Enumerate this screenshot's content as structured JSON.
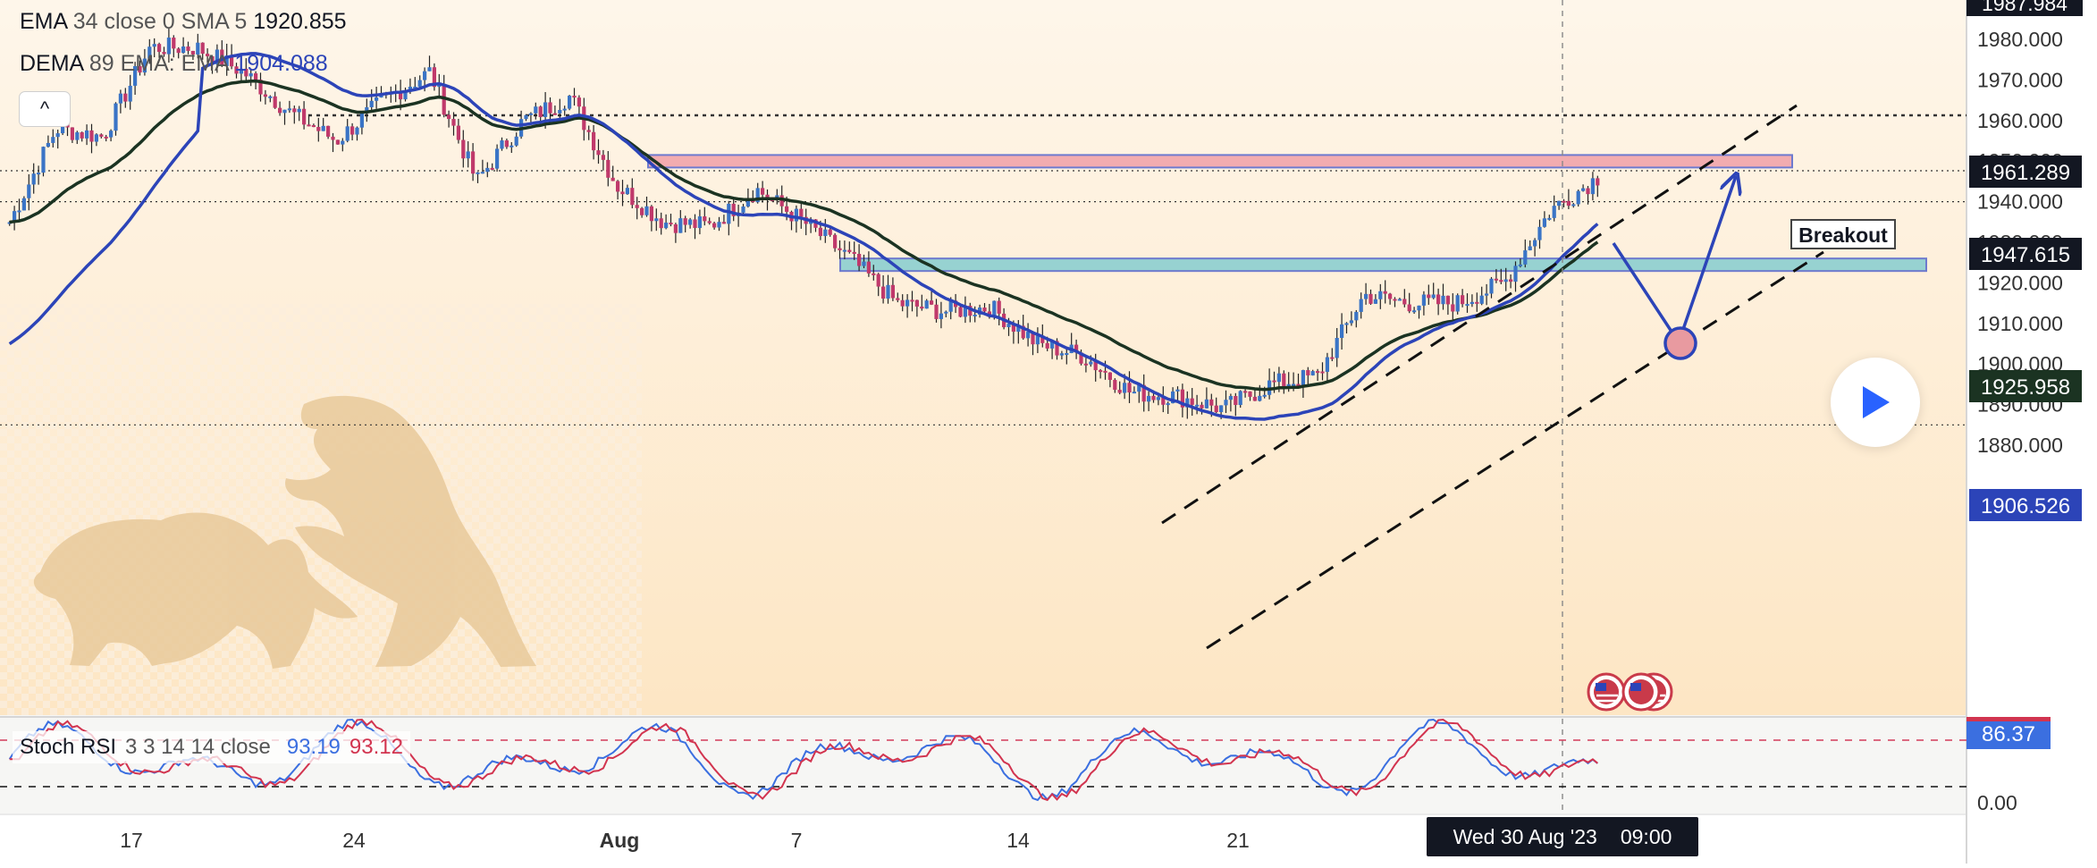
{
  "legend": {
    "ema_name": "EMA",
    "ema_params": "34 close 0 SMA 5",
    "ema_value": "1920.855",
    "dema_name": "DEMA",
    "dema_params": "89 EMA: EMA",
    "dema_value": "1904.088",
    "collapse_symbol": "^"
  },
  "annotation": {
    "breakout_label": "Breakout"
  },
  "crosshair": {
    "date": "Wed 30 Aug '23",
    "time": "09:00"
  },
  "rsi_legend": {
    "name": "Stoch RSI",
    "params": "3 3 14 14 close",
    "k_value": "93.19",
    "d_value": "93.12",
    "axis_current": "86.37",
    "axis_zero": "0.00"
  },
  "price_badges": {
    "top_clip": "1987.984",
    "level_hline": "1961.289",
    "last_price": "1947.615",
    "ema_value": "1925.958",
    "dema_value": "1906.526"
  },
  "colors": {
    "up_candle": "#3a74c6",
    "down_candle": "#c0396b",
    "ema_line": "#1b3322",
    "dema_line": "#2c44b8",
    "resistance_zone": "#f0a0a8",
    "support_zone": "#86cdd0",
    "background_warm": "#fdebd0",
    "stoch_k": "#3b6fe0",
    "stoch_d": "#d2344f"
  },
  "chart_data": {
    "type": "candlestick",
    "instrument": "",
    "y_axis": {
      "ticks": [
        "1880.000",
        "1890.000",
        "1900.000",
        "1910.000",
        "1920.000",
        "1930.000",
        "1940.000",
        "1950.000",
        "1960.000",
        "1970.000",
        "1980.000"
      ],
      "range": [
        1880,
        1990
      ]
    },
    "x_axis": {
      "ticks": [
        "17",
        "24",
        "Aug",
        "7",
        "14",
        "21"
      ]
    },
    "key_points": [
      {
        "x": "Jul 13",
        "close": 1935
      },
      {
        "x": "Jul 14",
        "close": 1958
      },
      {
        "x": "Jul 17",
        "close": 1956
      },
      {
        "x": "Jul 18",
        "close": 1978
      },
      {
        "x": "Jul 19",
        "close": 1978
      },
      {
        "x": "Jul 20",
        "close": 1972
      },
      {
        "x": "Jul 21",
        "close": 1962
      },
      {
        "x": "Jul 24",
        "close": 1955
      },
      {
        "x": "Jul 25",
        "close": 1965
      },
      {
        "x": "Jul 26",
        "close": 1972
      },
      {
        "x": "Jul 27",
        "close": 1945
      },
      {
        "x": "Jul 28",
        "close": 1960
      },
      {
        "x": "Jul 31",
        "close": 1966
      },
      {
        "x": "Aug 1",
        "close": 1944
      },
      {
        "x": "Aug 2",
        "close": 1935
      },
      {
        "x": "Aug 3",
        "close": 1934
      },
      {
        "x": "Aug 4",
        "close": 1943
      },
      {
        "x": "Aug 7",
        "close": 1935
      },
      {
        "x": "Aug 8",
        "close": 1926
      },
      {
        "x": "Aug 9",
        "close": 1915
      },
      {
        "x": "Aug 10",
        "close": 1913
      },
      {
        "x": "Aug 11",
        "close": 1914
      },
      {
        "x": "Aug 14",
        "close": 1905
      },
      {
        "x": "Aug 15",
        "close": 1902
      },
      {
        "x": "Aug 16",
        "close": 1893
      },
      {
        "x": "Aug 17",
        "close": 1892
      },
      {
        "x": "Aug 18",
        "close": 1889
      },
      {
        "x": "Aug 21",
        "close": 1895
      },
      {
        "x": "Aug 22",
        "close": 1897
      },
      {
        "x": "Aug 23",
        "close": 1917
      },
      {
        "x": "Aug 24",
        "close": 1915
      },
      {
        "x": "Aug 25",
        "close": 1915
      },
      {
        "x": "Aug 28",
        "close": 1920
      },
      {
        "x": "Aug 29",
        "close": 1938
      },
      {
        "x": "Aug 30",
        "close": 1946
      }
    ],
    "horizontal_lines": [
      1961.289,
      1947.615,
      1940.0,
      1885.0
    ],
    "zones": [
      {
        "name": "resistance",
        "from": 1949,
        "to": 1951.5
      },
      {
        "name": "support",
        "from": 1923,
        "to": 1926
      }
    ],
    "channel": {
      "lower": [
        [
          "Aug 18",
          1884
        ],
        [
          "Sep 6",
          1948
        ]
      ],
      "upper": [
        [
          "Aug 18",
          1904
        ],
        [
          "Sep 6",
          1970
        ]
      ]
    },
    "projection": [
      1947.6,
      1933,
      1961.3
    ],
    "indicators": {
      "ema_34": 1920.855,
      "dema_89": 1904.088
    },
    "stoch_rsi": {
      "k": 93.19,
      "d": 93.12,
      "levels": [
        80,
        20
      ]
    }
  }
}
